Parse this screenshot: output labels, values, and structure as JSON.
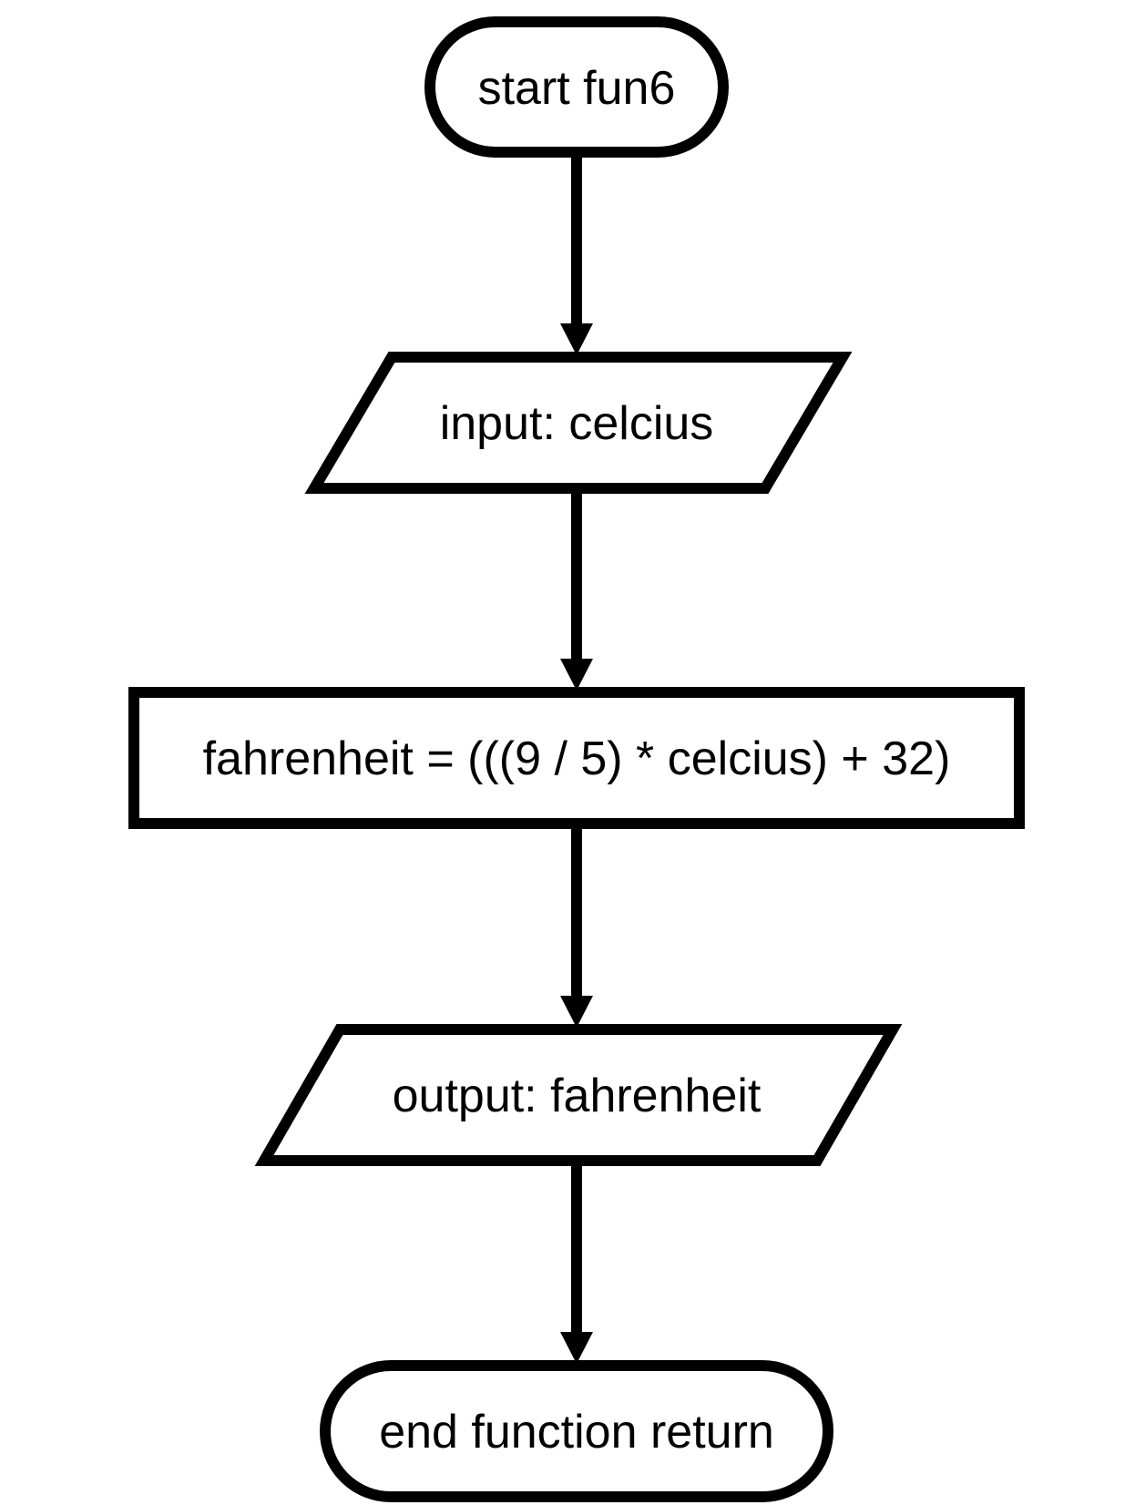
{
  "diagram": {
    "nodes": [
      {
        "id": "start",
        "kind": "terminator",
        "label": "start fun6"
      },
      {
        "id": "input",
        "kind": "io",
        "label": "input: celcius"
      },
      {
        "id": "process",
        "kind": "process",
        "label": "fahrenheit = (((9 / 5) * celcius) + 32)"
      },
      {
        "id": "output",
        "kind": "io",
        "label": "output: fahrenheit"
      },
      {
        "id": "end",
        "kind": "terminator",
        "label": "end function return"
      }
    ],
    "edges": [
      {
        "from": "start",
        "to": "input"
      },
      {
        "from": "input",
        "to": "process"
      },
      {
        "from": "process",
        "to": "output"
      },
      {
        "from": "output",
        "to": "end"
      }
    ],
    "colors": {
      "stroke": "#000000",
      "fill": "#ffffff",
      "background": "#ffffff"
    }
  }
}
